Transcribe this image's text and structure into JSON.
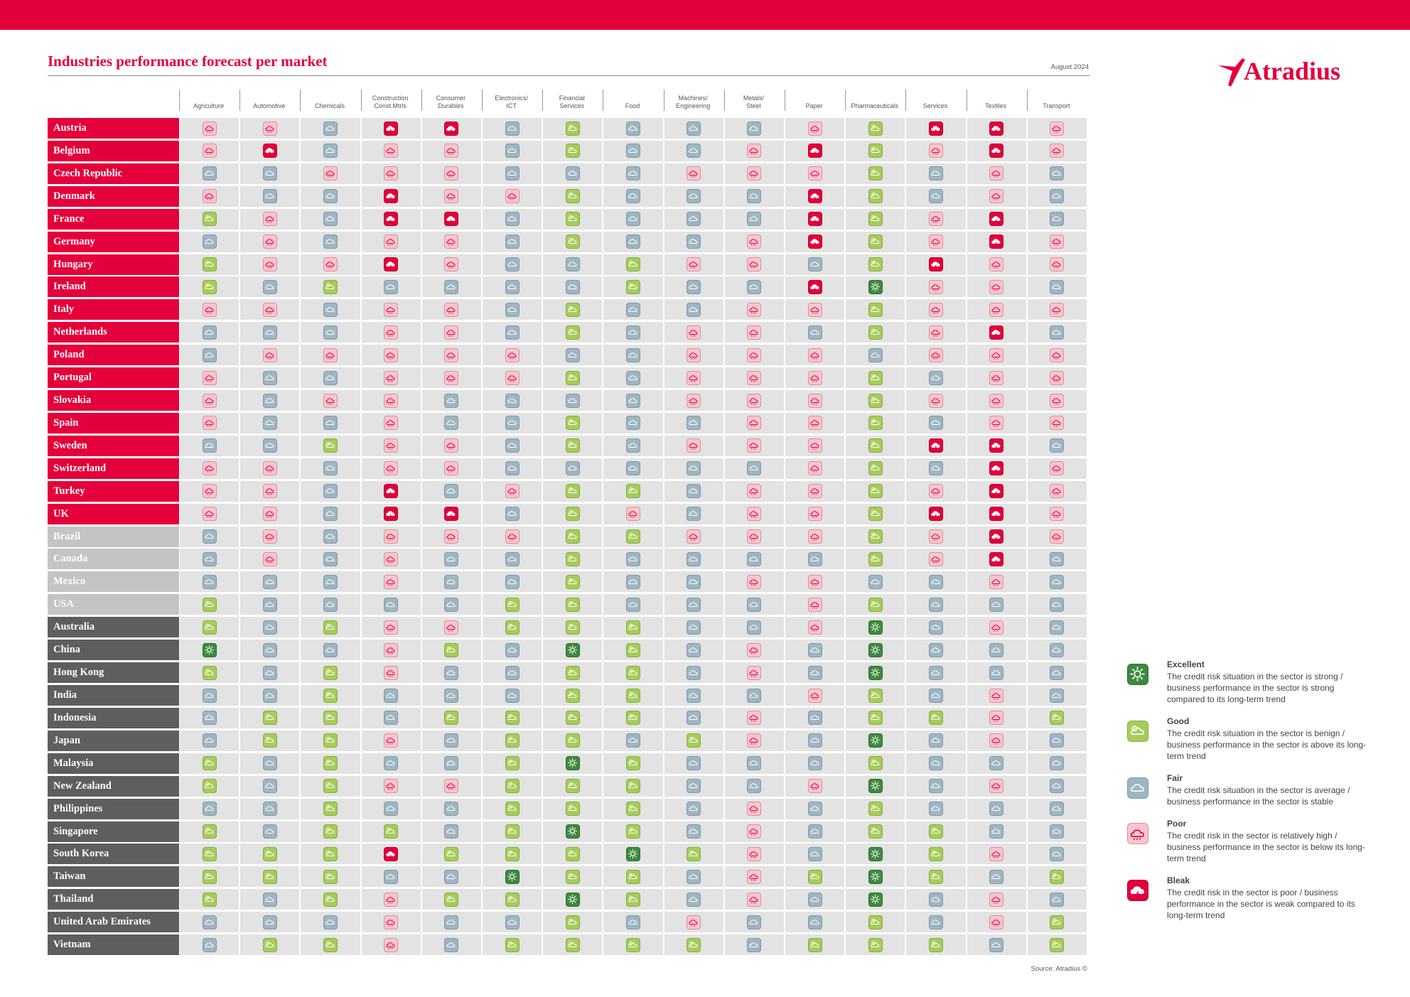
{
  "header": {
    "title": "Industries performance forecast per market",
    "date": "August 2024",
    "brand": "Atradius",
    "source": "Source: Atradius ©"
  },
  "colors": {
    "brand_red": "#e4003a",
    "region_europe": "#e4003a",
    "region_americas": "#c4c4c4",
    "region_asia_pacific": "#5e5e5e",
    "excellent": "#3d8a3e",
    "good": "#a6cc5a",
    "fair": "#9eb5c2",
    "poor": "#f7c6cf",
    "bleak": "#e4003a"
  },
  "legend": [
    {
      "key": "E",
      "rating": "excellent",
      "icon": "sun-icon",
      "title": "Excellent",
      "description": "The credit risk situation in the sector is strong / business performance in the sector is strong compared to its long-term trend"
    },
    {
      "key": "G",
      "rating": "good",
      "icon": "sun-cloud-icon",
      "title": "Good",
      "description": "The credit risk situation in the sector is benign / business performance in the sector is above its long-term trend"
    },
    {
      "key": "F",
      "rating": "fair",
      "icon": "cloud-icon",
      "title": "Fair",
      "description": "The credit risk situation in the sector is average / business performance in the sector is stable"
    },
    {
      "key": "P",
      "rating": "poor",
      "icon": "rain-cloud-icon",
      "title": "Poor",
      "description": "The credit risk in the sector is relatively high / business performance in the sector is below its long-term trend"
    },
    {
      "key": "B",
      "rating": "bleak",
      "icon": "storm-cloud-icon",
      "title": "Bleak",
      "description": "The credit risk in the sector is poor / business performance in the sector is weak compared to its long-term trend"
    }
  ],
  "chart_data": {
    "type": "table",
    "title": "Industries performance forecast per market",
    "value_scale": {
      "E": "Excellent",
      "G": "Good",
      "F": "Fair",
      "P": "Poor",
      "B": "Bleak"
    },
    "columns": [
      "Agriculture",
      "Automotive",
      "Chemicals",
      "Construction\nConst.Mtrls",
      "Consumer\nDurables",
      "Electronics/\nICT",
      "Financial\nServices",
      "Food",
      "Machines/\nEngineering",
      "Metals/\nSteel",
      "Paper",
      "Pharmaceuticals",
      "Services",
      "Textiles",
      "Transport"
    ],
    "rows": [
      {
        "market": "Austria",
        "region": "europe",
        "values": "PPFBBFGFFFPGBBP"
      },
      {
        "market": "Belgium",
        "region": "europe",
        "values": "PBFPPFGFFPBGPBP"
      },
      {
        "market": "Czech Republic",
        "region": "europe",
        "values": "FFPPPFFFPPPGFPF"
      },
      {
        "market": "Denmark",
        "region": "europe",
        "values": "PFFBPPGFFFBGFPF"
      },
      {
        "market": "France",
        "region": "europe",
        "values": "GPFBBFGFFFBGPBF"
      },
      {
        "market": "Germany",
        "region": "europe",
        "values": "FPFPPFGFFPBGPBP"
      },
      {
        "market": "Hungary",
        "region": "europe",
        "values": "GPPBPFFGPPFGBPP"
      },
      {
        "market": "Ireland",
        "region": "europe",
        "values": "GFGFFFFGFFBEPPF"
      },
      {
        "market": "Italy",
        "region": "europe",
        "values": "PPFPPFGFFPPGPPP"
      },
      {
        "market": "Netherlands",
        "region": "europe",
        "values": "FFFPPFGFPPFGPBF"
      },
      {
        "market": "Poland",
        "region": "europe",
        "values": "FPPPPPFFPPPFPPP"
      },
      {
        "market": "Portugal",
        "region": "europe",
        "values": "PFFPPPGFPPPGFPP"
      },
      {
        "market": "Slovakia",
        "region": "europe",
        "values": "PFPPFFFFPPPGPPP"
      },
      {
        "market": "Spain",
        "region": "europe",
        "values": "PFFPFFGFFPPGFPP"
      },
      {
        "market": "Sweden",
        "region": "europe",
        "values": "FFGPPFGFPPPGBBF"
      },
      {
        "market": "Switzerland",
        "region": "europe",
        "values": "PPFPPFFFFFPGFBP"
      },
      {
        "market": "Turkey",
        "region": "europe",
        "values": "PPFBFPGGFPPGPBP"
      },
      {
        "market": "UK",
        "region": "europe",
        "values": "PPFBBFGPFPPGBBP"
      },
      {
        "market": "Brazil",
        "region": "americas",
        "values": "FPFPPPGGPPPGPBP"
      },
      {
        "market": "Canada",
        "region": "americas",
        "values": "FPFPFFGFFFFGPBF"
      },
      {
        "market": "Mexico",
        "region": "americas",
        "values": "FFFPFFGFFPPFFPF"
      },
      {
        "market": "USA",
        "region": "americas",
        "values": "GFFFFGGFFFPGFFF"
      },
      {
        "market": "Australia",
        "region": "asia_pacific",
        "values": "GFGPPGGGFFPEFPF"
      },
      {
        "market": "China",
        "region": "asia_pacific",
        "values": "EFFPGFEGFPFEFFF"
      },
      {
        "market": "Hong Kong",
        "region": "asia_pacific",
        "values": "GFGPFFGGFPFEFFF"
      },
      {
        "market": "India",
        "region": "asia_pacific",
        "values": "FFGFFFGGFFPGFPF"
      },
      {
        "market": "Indonesia",
        "region": "asia_pacific",
        "values": "FGGFGGGGFPFGGPG"
      },
      {
        "market": "Japan",
        "region": "asia_pacific",
        "values": "FGGPFGGFGPFEFPF"
      },
      {
        "market": "Malaysia",
        "region": "asia_pacific",
        "values": "GFGFFGEGFFFGFFF"
      },
      {
        "market": "New Zealand",
        "region": "asia_pacific",
        "values": "GFGPPGGGFFPEFPF"
      },
      {
        "market": "Philippines",
        "region": "asia_pacific",
        "values": "FFGFFGGGFPFGFFF"
      },
      {
        "market": "Singapore",
        "region": "asia_pacific",
        "values": "GFGGFGEGFPFGGFF"
      },
      {
        "market": "South Korea",
        "region": "asia_pacific",
        "values": "GGGBGGGEGPFEGPF"
      },
      {
        "market": "Taiwan",
        "region": "asia_pacific",
        "values": "GGGFFEGGFPGEGFG"
      },
      {
        "market": "Thailand",
        "region": "asia_pacific",
        "values": "GFGPGGEGFPFEFPF"
      },
      {
        "market": "United Arab Emirates",
        "region": "asia_pacific",
        "values": "FFFPFFGFPFFGFPG"
      },
      {
        "market": "Vietnam",
        "region": "asia_pacific",
        "values": "FGGPFGGGGFGGGFG"
      }
    ]
  }
}
